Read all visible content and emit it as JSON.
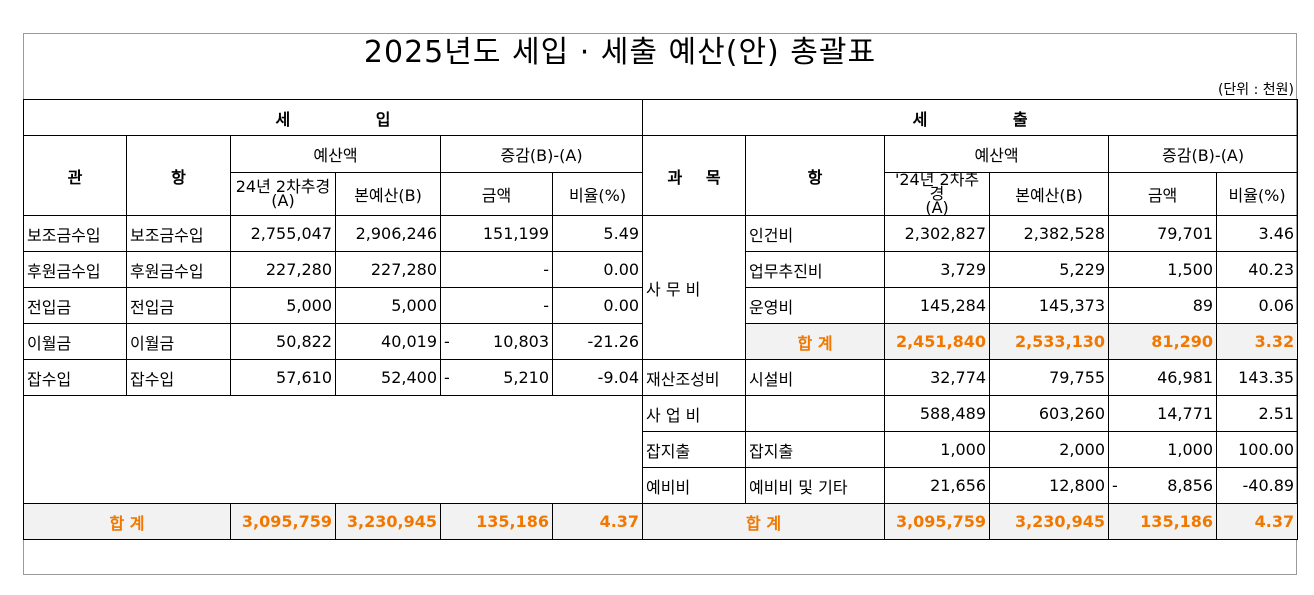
{
  "title": "2025년도 세입 · 세출 예산(안) 총괄표",
  "unit": "(단위 : 천원)",
  "revenue": {
    "section_label": "세 입",
    "header": {
      "gwan": "관",
      "hang": "항",
      "budget": "예산액",
      "diff": "증감(B)-(A)",
      "prev": "24년 2차추경\n(A)",
      "curr": "본예산(B)",
      "amount": "금액",
      "ratio": "비율(%)"
    },
    "rows": [
      {
        "gwan": "보조금수입",
        "hang": "보조금수입",
        "prev": "2,755,047",
        "curr": "2,906,246",
        "sign": "",
        "amount": "151,199",
        "ratio": "5.49"
      },
      {
        "gwan": "후원금수입",
        "hang": "후원금수입",
        "prev": "227,280",
        "curr": "227,280",
        "sign": "",
        "amount": "-",
        "ratio": "0.00"
      },
      {
        "gwan": "전입금",
        "hang": "전입금",
        "prev": "5,000",
        "curr": "5,000",
        "sign": "",
        "amount": "-",
        "ratio": "0.00"
      },
      {
        "gwan": "이월금",
        "hang": "이월금",
        "prev": "50,822",
        "curr": "40,019",
        "sign": "-",
        "amount": "10,803",
        "ratio": "-21.26"
      },
      {
        "gwan": "잡수입",
        "hang": "잡수입",
        "prev": "57,610",
        "curr": "52,400",
        "sign": "-",
        "amount": "5,210",
        "ratio": "-9.04"
      }
    ],
    "total": {
      "label": "합 계",
      "prev": "3,095,759",
      "curr": "3,230,945",
      "amount": "135,186",
      "ratio": "4.37"
    }
  },
  "expense": {
    "section_label": "세 출",
    "header": {
      "gwamok": "과 목",
      "hang": "항",
      "budget": "예산액",
      "diff": "증감(B)-(A)",
      "prev": "'24년 2차추경\n(A)",
      "curr": "본예산(B)",
      "amount": "금액",
      "ratio": "비율(%)"
    },
    "office_group": "사 무 비",
    "rows": [
      {
        "hang": "인건비",
        "prev": "2,302,827",
        "curr": "2,382,528",
        "sign": "",
        "amount": "79,701",
        "ratio": "3.46"
      },
      {
        "hang": "업무추진비",
        "prev": "3,729",
        "curr": "5,229",
        "sign": "",
        "amount": "1,500",
        "ratio": "40.23"
      },
      {
        "hang": "운영비",
        "prev": "145,284",
        "curr": "145,373",
        "sign": "",
        "amount": "89",
        "ratio": "0.06"
      }
    ],
    "office_subtotal": {
      "label": "합 계",
      "prev": "2,451,840",
      "curr": "2,533,130",
      "amount": "81,290",
      "ratio": "3.32"
    },
    "other_rows": [
      {
        "gwamok": "재산조성비",
        "hang": "시설비",
        "prev": "32,774",
        "curr": "79,755",
        "sign": "",
        "amount": "46,981",
        "ratio": "143.35"
      },
      {
        "gwamok": "사 업 비",
        "hang": "",
        "prev": "588,489",
        "curr": "603,260",
        "sign": "",
        "amount": "14,771",
        "ratio": "2.51"
      },
      {
        "gwamok": "잡지출",
        "hang": "잡지출",
        "prev": "1,000",
        "curr": "2,000",
        "sign": "",
        "amount": "1,000",
        "ratio": "100.00"
      },
      {
        "gwamok": "예비비",
        "hang": "예비비 및 기타",
        "prev": "21,656",
        "curr": "12,800",
        "sign": "-",
        "amount": "8,856",
        "ratio": "-40.89"
      }
    ],
    "total": {
      "label": "합 계",
      "prev": "3,095,759",
      "curr": "3,230,945",
      "amount": "135,186",
      "ratio": "4.37"
    }
  }
}
